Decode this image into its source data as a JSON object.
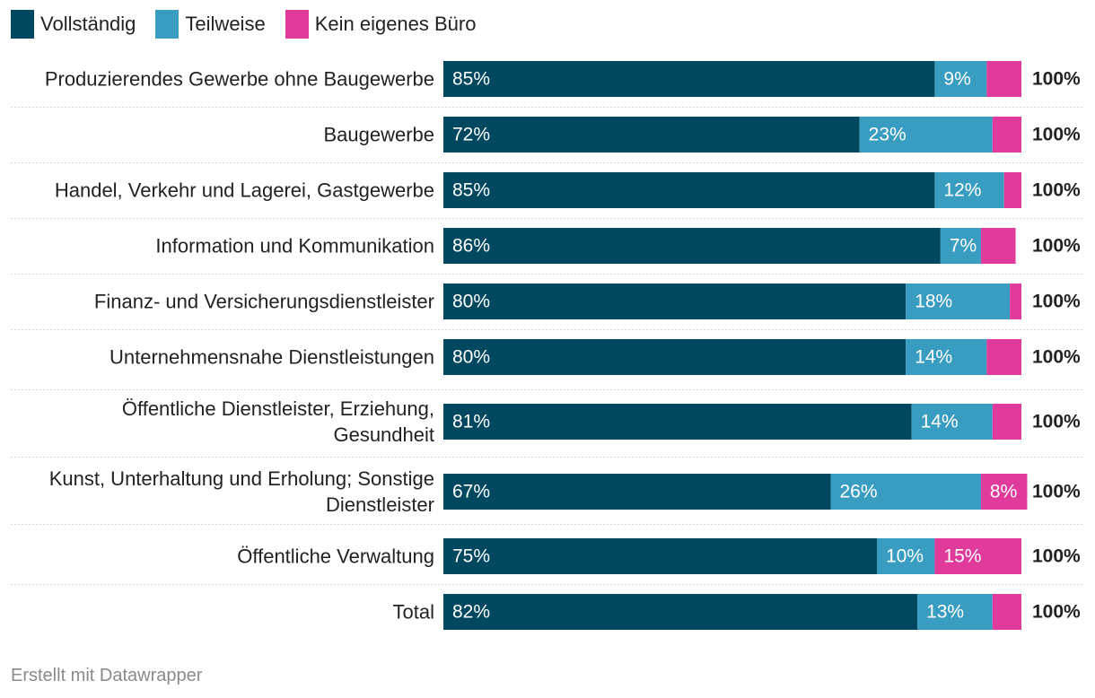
{
  "legend": [
    {
      "label": "Vollständig",
      "color": "#00485f"
    },
    {
      "label": "Teilweise",
      "color": "#399dc2"
    },
    {
      "label": "Kein eigenes Büro",
      "color": "#e03a9b"
    }
  ],
  "footer": "Erstellt mit Datawrapper",
  "chart_data": {
    "type": "bar",
    "orientation": "horizontal",
    "stacked": true,
    "title": "",
    "xlabel": "",
    "ylabel": "",
    "xlim": [
      0,
      100
    ],
    "categories": [
      "Produzierendes Gewerbe ohne Baugewerbe",
      "Baugewerbe",
      "Handel, Verkehr und Lagerei, Gastgewerbe",
      "Information und Kommunikation",
      "Finanz- und Versicherungsdienstleister",
      "Unternehmensnahe Dienstleistungen",
      "Öffentliche Dienstleister, Erziehung, Gesundheit",
      "Kunst, Unterhaltung und Erholung; Sonstige Dienstleister",
      "Öffentliche Verwaltung",
      "Total"
    ],
    "category_lines": [
      [
        "Produzierendes Gewerbe ohne Baugewerbe"
      ],
      [
        "Baugewerbe"
      ],
      [
        "Handel, Verkehr und Lagerei, Gastgewerbe"
      ],
      [
        "Information und Kommunikation"
      ],
      [
        "Finanz- und Versicherungsdienstleister"
      ],
      [
        "Unternehmensnahe Dienstleistungen"
      ],
      [
        "Öffentliche Dienstleister, Erziehung,",
        "Gesundheit"
      ],
      [
        "Kunst, Unterhaltung und Erholung; Sonstige",
        "Dienstleister"
      ],
      [
        "Öffentliche Verwaltung"
      ],
      [
        "Total"
      ]
    ],
    "series": [
      {
        "name": "Vollständig",
        "color": "#00485f",
        "values": [
          85,
          72,
          85,
          86,
          80,
          80,
          81,
          67,
          75,
          82
        ]
      },
      {
        "name": "Teilweise",
        "color": "#399dc2",
        "values": [
          9,
          23,
          12,
          7,
          18,
          14,
          14,
          26,
          10,
          13
        ]
      },
      {
        "name": "Kein eigenes Büro",
        "color": "#e03a9b",
        "values": [
          6,
          5,
          3,
          6,
          2,
          6,
          5,
          8,
          15,
          5
        ]
      }
    ],
    "data_labels": [
      [
        "85%",
        "72%",
        "85%",
        "86%",
        "80%",
        "80%",
        "81%",
        "67%",
        "75%",
        "82%"
      ],
      [
        "9%",
        "23%",
        "12%",
        "7%",
        "18%",
        "14%",
        "14%",
        "26%",
        "10%",
        "13%"
      ],
      [
        "",
        "",
        "",
        "",
        "",
        "",
        "",
        "8%",
        "15%",
        ""
      ]
    ],
    "totals": [
      "100%",
      "100%",
      "100%",
      "100%",
      "100%",
      "100%",
      "100%",
      "100%",
      "100%",
      "100%"
    ]
  }
}
